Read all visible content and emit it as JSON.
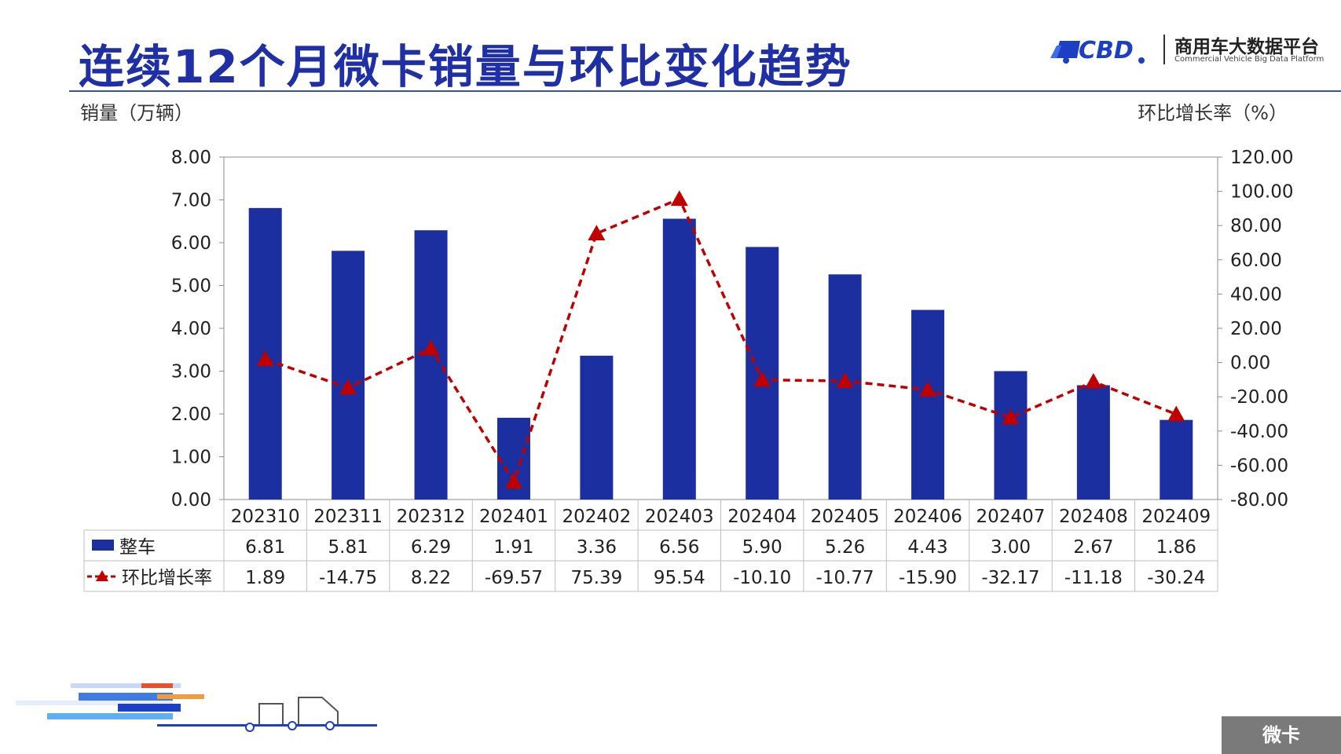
{
  "header": {
    "title": "连续12个月微卡销量与环比变化趋势",
    "logo_cn": "商用车大数据平台",
    "logo_en": "Commercial Vehicle Big Data Platform"
  },
  "axis_labels": {
    "left_unit": "销量（万辆）",
    "right_unit": "环比增长率（%）"
  },
  "colors": {
    "bar": "#1b2fa0",
    "line": "#c00000",
    "title": "#1f2fa5"
  },
  "corner_tag": "微卡",
  "chart_data": {
    "type": "bar",
    "categories": [
      "202310",
      "202311",
      "202312",
      "202401",
      "202402",
      "202403",
      "202404",
      "202405",
      "202406",
      "202407",
      "202408",
      "202409"
    ],
    "series": [
      {
        "name": "整车",
        "type": "bar",
        "axis": "left",
        "values": [
          6.81,
          5.81,
          6.29,
          1.91,
          3.36,
          6.56,
          5.9,
          5.26,
          4.43,
          3.0,
          2.67,
          1.86
        ],
        "labels": [
          "6.81",
          "5.81",
          "6.29",
          "1.91",
          "3.36",
          "6.56",
          "5.90",
          "5.26",
          "4.43",
          "3.00",
          "2.67",
          "1.86"
        ]
      },
      {
        "name": "环比增长率",
        "type": "line",
        "axis": "right",
        "values": [
          1.89,
          -14.75,
          8.22,
          -69.57,
          75.39,
          95.54,
          -10.1,
          -10.77,
          -15.9,
          -32.17,
          -11.18,
          -30.24
        ],
        "labels": [
          "1.89",
          "-14.75",
          "8.22",
          "-69.57",
          "75.39",
          "95.54",
          "-10.10",
          "-10.77",
          "-15.90",
          "-32.17",
          "-11.18",
          "-30.24"
        ]
      }
    ],
    "y_left": {
      "range": [
        0,
        8
      ],
      "ticks": [
        "0.00",
        "1.00",
        "2.00",
        "3.00",
        "4.00",
        "5.00",
        "6.00",
        "7.00",
        "8.00"
      ]
    },
    "y_right": {
      "range": [
        -80,
        120
      ],
      "ticks": [
        "-80.00",
        "-60.00",
        "-40.00",
        "-20.00",
        "0.00",
        "20.00",
        "40.00",
        "60.00",
        "80.00",
        "100.00",
        "120.00"
      ]
    },
    "legend": "data-table"
  }
}
